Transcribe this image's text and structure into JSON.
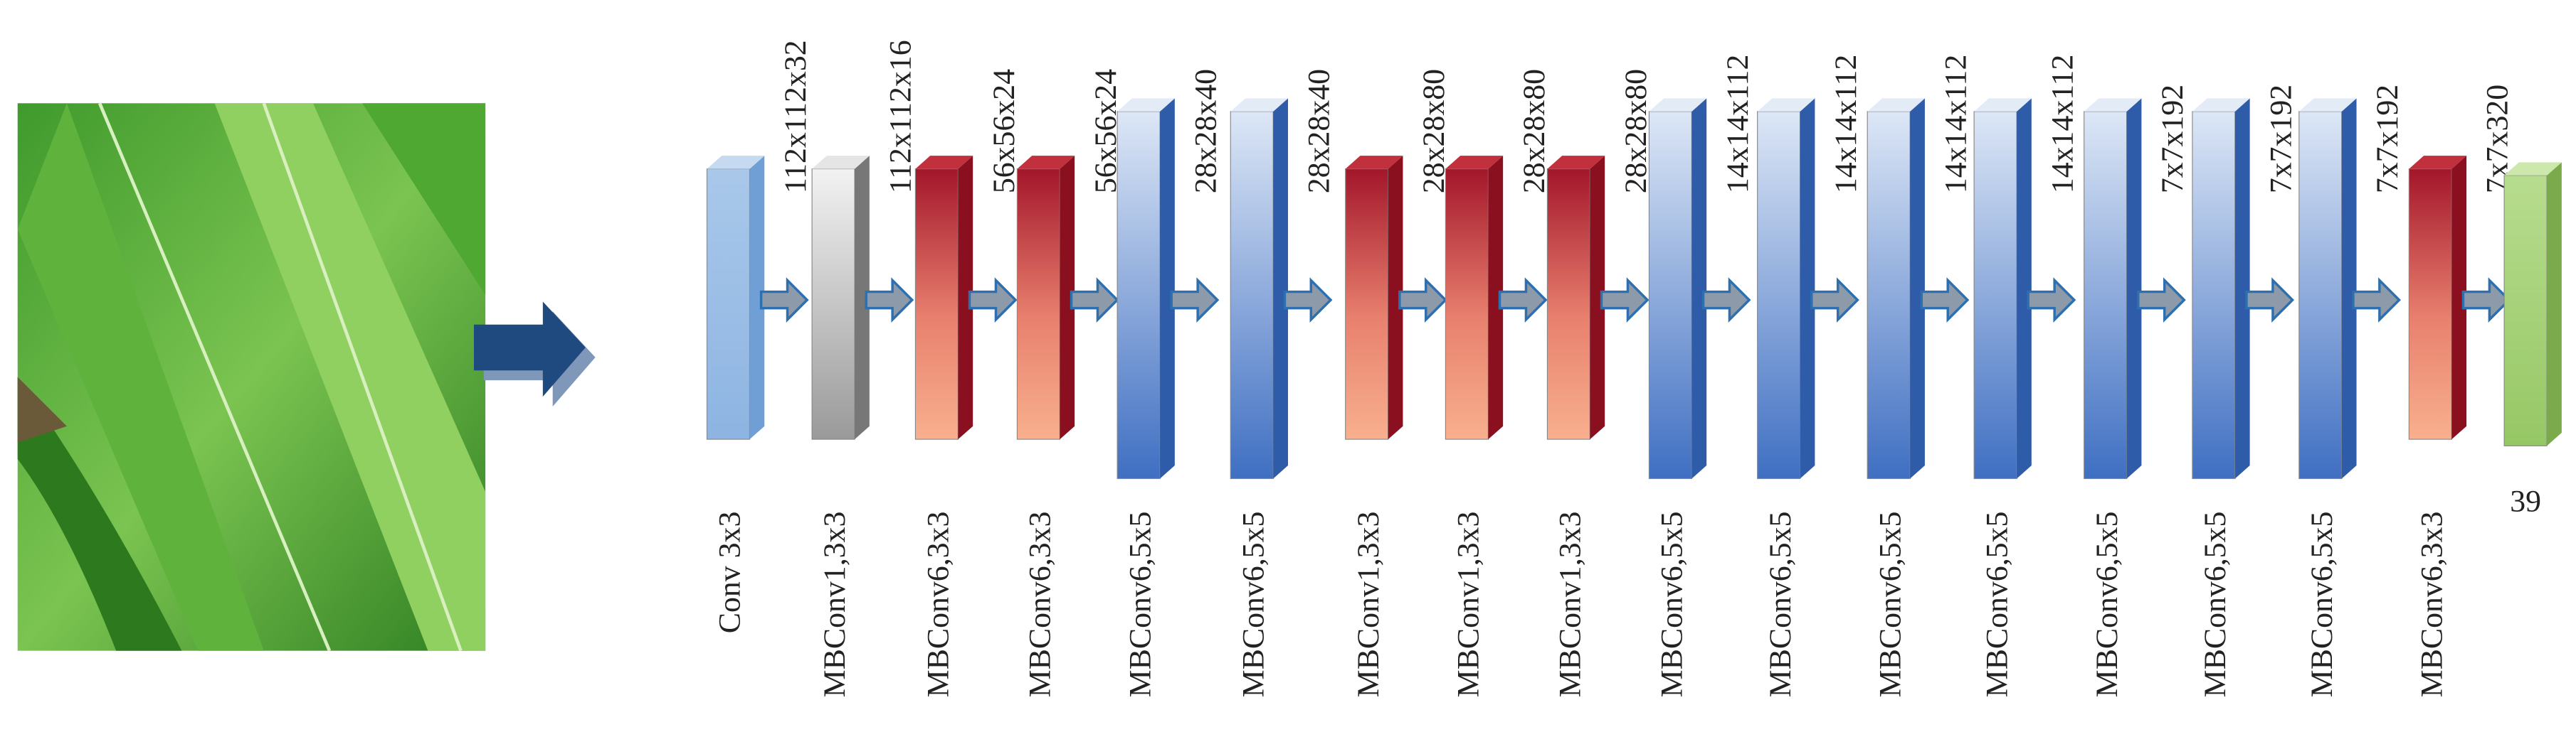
{
  "blocks": [
    {
      "name": "Conv 3x3",
      "output": "112x112x32"
    },
    {
      "name": "MBConv1,3x3",
      "output": "112x112x16"
    },
    {
      "name": "MBConv6,3x3",
      "output": "56x56x24"
    },
    {
      "name": "MBConv6,3x3",
      "output": "56x56x24"
    },
    {
      "name": "MBConv6,5x5",
      "output": "28x28x40"
    },
    {
      "name": "MBConv6,5x5",
      "output": "28x28x40"
    },
    {
      "name": "MBConv1,3x3",
      "output": "28x28x80"
    },
    {
      "name": "MBConv1,3x3",
      "output": "28x28x80"
    },
    {
      "name": "MBConv1,3x3",
      "output": "28x28x80"
    },
    {
      "name": "MBConv6,5x5",
      "output": "14x14x112"
    },
    {
      "name": "MBConv6,5x5",
      "output": "14x14x112"
    },
    {
      "name": "MBConv6,5x5",
      "output": "14x14x112"
    },
    {
      "name": "MBConv6,5x5",
      "output": "14x14x112"
    },
    {
      "name": "MBConv6,5x5",
      "output": "7x7x192"
    },
    {
      "name": "MBConv6,5x5",
      "output": "7x7x192"
    },
    {
      "name": "MBConv6,5x5",
      "output": "7x7x192"
    },
    {
      "name": "MBConv6,3x3",
      "output": "7x7x320"
    }
  ],
  "final": {
    "label": "39"
  }
}
